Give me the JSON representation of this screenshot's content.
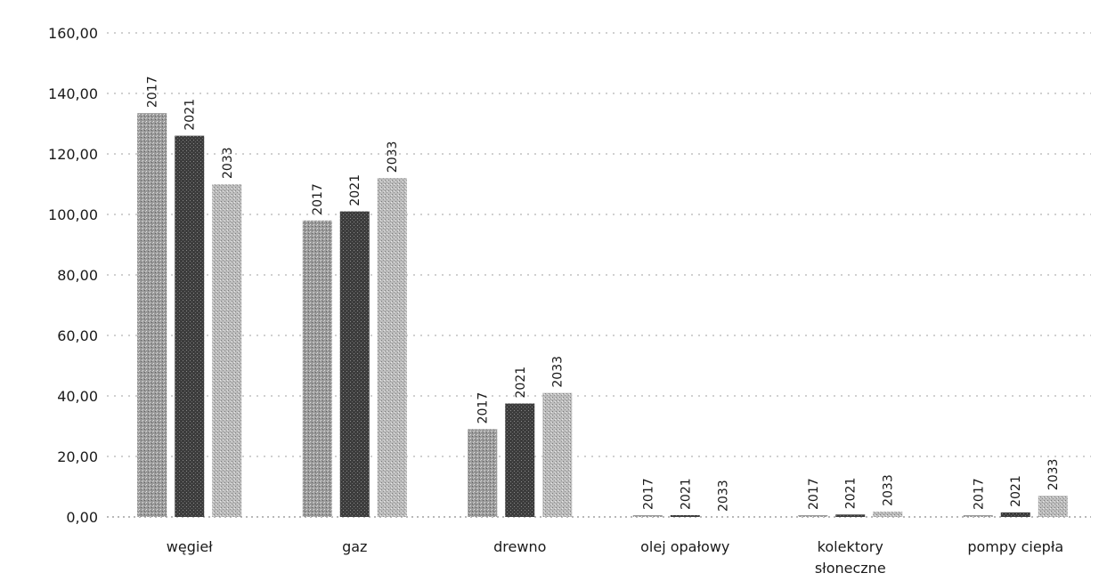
{
  "chart_data": {
    "type": "bar",
    "title": "",
    "xlabel": "",
    "ylabel": "",
    "ylim": [
      0,
      160
    ],
    "yticks": [
      "0,00",
      "20,00",
      "40,00",
      "60,00",
      "80,00",
      "100,00",
      "120,00",
      "140,00",
      "160,00"
    ],
    "grid": true,
    "categories": [
      [
        "węgieł"
      ],
      [
        "gaz"
      ],
      [
        "drewno"
      ],
      [
        "olej opałowy"
      ],
      [
        "kolektory",
        "słoneczne"
      ],
      [
        "pompy ciepła"
      ]
    ],
    "series": [
      {
        "name": "2017",
        "color": "#9a9a9a",
        "values": [
          133.5,
          98.0,
          29.0,
          0.4,
          0.2,
          0.2
        ]
      },
      {
        "name": "2021",
        "color": "#3c3c3c",
        "values": [
          126.0,
          101.0,
          37.5,
          0.4,
          0.8,
          1.5
        ]
      },
      {
        "name": "2033",
        "color": "#bdbdbd",
        "values": [
          110.0,
          112.0,
          41.0,
          0.0,
          1.8,
          7.0
        ]
      }
    ]
  }
}
